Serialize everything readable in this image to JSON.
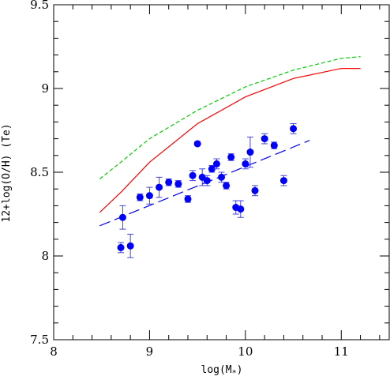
{
  "chart_data": {
    "type": "scatter",
    "xlabel": "log(M*)",
    "ylabel": "12+log(O/H) (Te)",
    "xlim": [
      8,
      11.5
    ],
    "ylim": [
      7.5,
      9.5
    ],
    "x_ticks": [
      "8",
      "9",
      "10",
      "11"
    ],
    "y_ticks": [
      "7.5",
      "8",
      "8.5",
      "9",
      "9.5"
    ],
    "grid": false,
    "series": [
      {
        "kind": "points",
        "color": "#0000ff",
        "points": [
          {
            "x": 8.7,
            "y": 8.05,
            "err": 0.03
          },
          {
            "x": 8.72,
            "y": 8.23,
            "err": 0.07
          },
          {
            "x": 8.8,
            "y": 8.06,
            "err": 0.07
          },
          {
            "x": 8.9,
            "y": 8.35,
            "err": 0.02
          },
          {
            "x": 9.0,
            "y": 8.36,
            "err": 0.05
          },
          {
            "x": 9.1,
            "y": 8.41,
            "err": 0.06
          },
          {
            "x": 9.2,
            "y": 8.44,
            "err": 0.02
          },
          {
            "x": 9.3,
            "y": 8.43,
            "err": 0.02
          },
          {
            "x": 9.4,
            "y": 8.34,
            "err": 0.02
          },
          {
            "x": 9.45,
            "y": 8.48,
            "err": 0.03
          },
          {
            "x": 9.5,
            "y": 8.67,
            "err": 0.01
          },
          {
            "x": 9.55,
            "y": 8.47,
            "err": 0.05
          },
          {
            "x": 9.6,
            "y": 8.45,
            "err": 0.03
          },
          {
            "x": 9.65,
            "y": 8.52,
            "err": 0.02
          },
          {
            "x": 9.7,
            "y": 8.55,
            "err": 0.03
          },
          {
            "x": 9.75,
            "y": 8.47,
            "err": 0.03
          },
          {
            "x": 9.8,
            "y": 8.42,
            "err": 0.02
          },
          {
            "x": 9.85,
            "y": 8.59,
            "err": 0.02
          },
          {
            "x": 9.9,
            "y": 8.29,
            "err": 0.04
          },
          {
            "x": 9.95,
            "y": 8.28,
            "err": 0.05
          },
          {
            "x": 10.0,
            "y": 8.55,
            "err": 0.03
          },
          {
            "x": 10.05,
            "y": 8.62,
            "err": 0.09
          },
          {
            "x": 10.1,
            "y": 8.39,
            "err": 0.03
          },
          {
            "x": 10.2,
            "y": 8.7,
            "err": 0.03
          },
          {
            "x": 10.3,
            "y": 8.66,
            "err": 0.02
          },
          {
            "x": 10.4,
            "y": 8.45,
            "err": 0.03
          },
          {
            "x": 10.5,
            "y": 8.76,
            "err": 0.03
          }
        ]
      },
      {
        "kind": "line",
        "color": "#0000ff",
        "style": "long-dash",
        "x": [
          8.48,
          10.67
        ],
        "y": [
          8.18,
          8.69
        ]
      },
      {
        "kind": "line",
        "color": "#ff0000",
        "style": "solid",
        "x": [
          8.48,
          8.7,
          9.0,
          9.5,
          10.0,
          10.5,
          11.0,
          11.2
        ],
        "y": [
          8.26,
          8.38,
          8.56,
          8.79,
          8.95,
          9.06,
          9.12,
          9.12
        ]
      },
      {
        "kind": "line",
        "color": "#00cc00",
        "style": "short-dash",
        "x": [
          8.48,
          8.7,
          9.0,
          9.5,
          10.0,
          10.5,
          11.0,
          11.2
        ],
        "y": [
          8.46,
          8.56,
          8.7,
          8.87,
          9.01,
          9.11,
          9.18,
          9.19
        ]
      }
    ]
  }
}
